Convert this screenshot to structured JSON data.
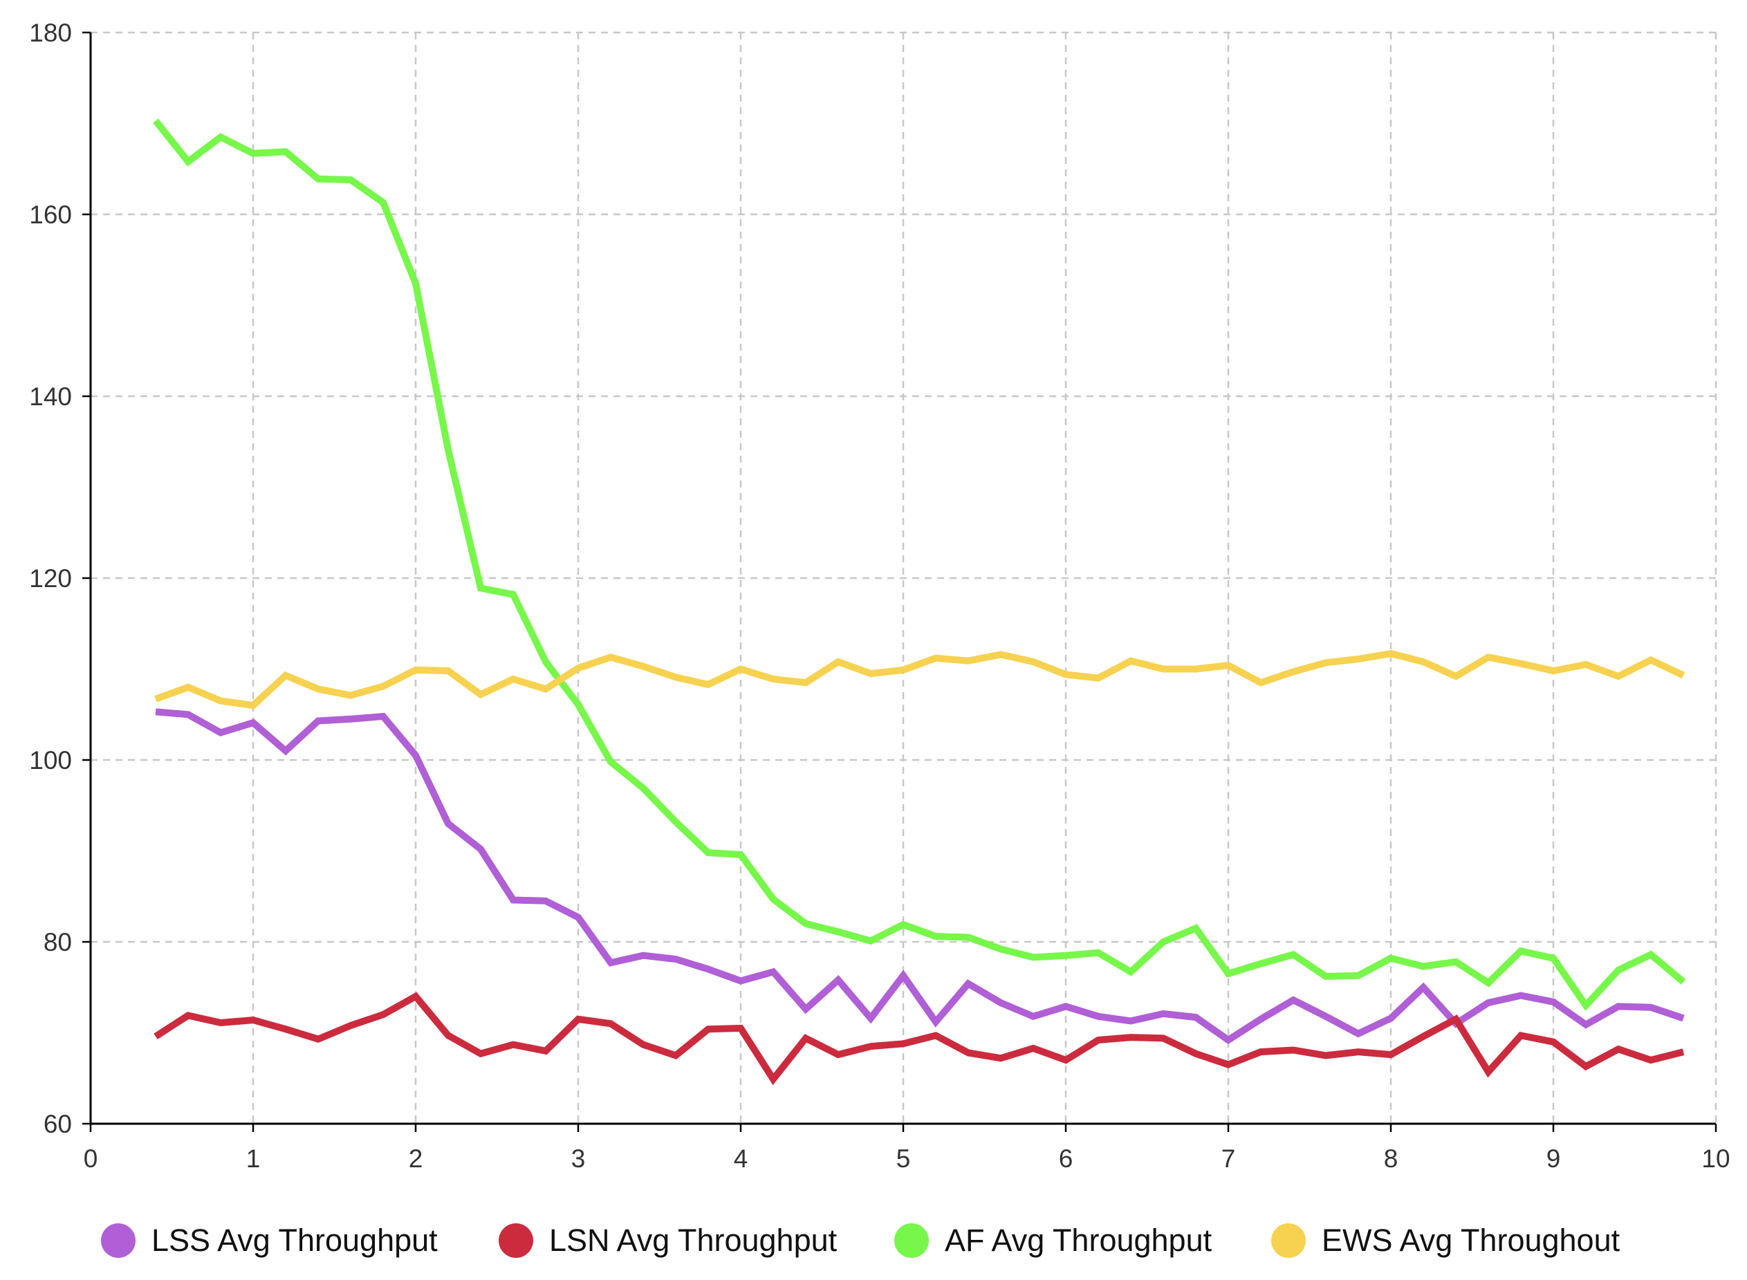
{
  "chart_data": {
    "type": "line",
    "title": "",
    "xlabel": "",
    "ylabel": "",
    "xlim": [
      0,
      10
    ],
    "ylim": [
      60,
      180
    ],
    "x_ticks": [
      "0",
      "1",
      "2",
      "3",
      "4",
      "5",
      "6",
      "7",
      "8",
      "9",
      "10"
    ],
    "y_ticks": [
      "60",
      "80",
      "100",
      "120",
      "140",
      "160",
      "180"
    ],
    "grid": true,
    "legend_position": "bottom",
    "x": [
      0.4,
      0.6,
      0.8,
      1.0,
      1.2,
      1.4,
      1.6,
      1.8,
      2.0,
      2.2,
      2.4,
      2.6,
      2.8,
      3.0,
      3.2,
      3.4,
      3.6,
      3.8,
      4.0,
      4.2,
      4.4,
      4.6,
      4.8,
      5.0,
      5.2,
      5.4,
      5.6,
      5.8,
      6.0,
      6.2,
      6.4,
      6.6,
      6.8,
      7.0,
      7.2,
      7.4,
      7.6,
      7.8,
      8.0,
      8.2,
      8.4,
      8.6,
      8.8,
      9.0,
      9.2,
      9.4,
      9.6,
      9.8
    ],
    "series": [
      {
        "name": "LSS Avg Throughput",
        "color": "#b05fd6",
        "values": [
          105.3,
          105.0,
          103.0,
          104.1,
          101.0,
          104.3,
          104.5,
          104.8,
          100.5,
          93.0,
          90.2,
          84.6,
          84.5,
          82.7,
          77.7,
          78.5,
          78.1,
          77.0,
          75.7,
          76.7,
          72.6,
          75.8,
          71.6,
          76.3,
          71.2,
          75.4,
          73.3,
          71.8,
          72.9,
          71.8,
          71.3,
          72.1,
          71.7,
          69.2,
          71.5,
          73.6,
          71.8,
          69.9,
          71.6,
          75.0,
          71.0,
          73.3,
          74.1,
          73.4,
          70.9,
          72.9,
          72.8,
          71.6
        ]
      },
      {
        "name": "LSN Avg Throughput",
        "color": "#cc2b3e",
        "values": [
          69.6,
          71.9,
          71.1,
          71.4,
          70.4,
          69.3,
          70.8,
          72.0,
          74.0,
          69.7,
          67.7,
          68.7,
          68.0,
          71.5,
          71.0,
          68.7,
          67.5,
          70.4,
          70.5,
          64.9,
          69.4,
          67.6,
          68.5,
          68.8,
          69.7,
          67.8,
          67.2,
          68.3,
          67.0,
          69.2,
          69.5,
          69.4,
          67.7,
          66.5,
          67.9,
          68.1,
          67.5,
          67.9,
          67.6,
          69.6,
          71.5,
          65.7,
          69.7,
          69.0,
          66.3,
          68.2,
          67.0,
          67.9
        ]
      },
      {
        "name": "AF Avg Throughput",
        "color": "#77f74a",
        "values": [
          170.3,
          165.8,
          168.5,
          166.7,
          166.9,
          163.9,
          163.8,
          161.3,
          152.4,
          134.1,
          118.9,
          118.2,
          110.8,
          106.1,
          99.8,
          96.9,
          93.2,
          89.8,
          89.6,
          84.7,
          82.0,
          81.1,
          80.1,
          81.9,
          80.6,
          80.5,
          79.2,
          78.3,
          78.5,
          78.8,
          76.7,
          80.0,
          81.5,
          76.5,
          77.6,
          78.6,
          76.2,
          76.3,
          78.2,
          77.3,
          77.8,
          75.5,
          79.0,
          78.2,
          73.0,
          76.9,
          78.6,
          75.6
        ]
      },
      {
        "name": "EWS Avg Throughout",
        "color": "#f7d250",
        "values": [
          106.7,
          108.0,
          106.5,
          106.0,
          109.3,
          107.8,
          107.1,
          108.1,
          109.9,
          109.8,
          107.2,
          108.9,
          107.8,
          110.1,
          111.3,
          110.3,
          109.1,
          108.3,
          110.0,
          108.9,
          108.5,
          110.8,
          109.5,
          109.9,
          111.2,
          110.9,
          111.6,
          110.8,
          109.4,
          109.0,
          110.9,
          110.0,
          110.0,
          110.4,
          108.5,
          109.7,
          110.7,
          111.1,
          111.7,
          110.8,
          109.2,
          111.3,
          110.6,
          109.8,
          110.5,
          109.2,
          111.0,
          109.3
        ]
      }
    ]
  }
}
